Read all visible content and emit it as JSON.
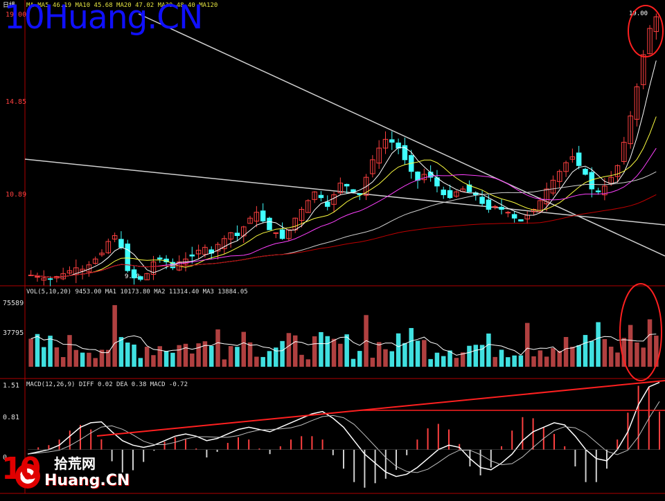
{
  "watermark": {
    "text": "10Huang.CN"
  },
  "logo": {
    "cn": "拾荒网",
    "en": "Huang.CN",
    "ten": "10"
  },
  "header": {
    "period": "日线",
    "ma_line": "MA MA5 46.19 MA10 45.68 MA20 47.02 MA30 48.40 MA120",
    "vol_line": "VOL(5,10,20) 9453.00 MA1 10173.80 MA2 11314.40 MA3 13884.05",
    "macd_line": "MACD(12,26,9) DIFF 0.02 DEA 0.38 MACD -0.72"
  },
  "price_axis": {
    "top": "19.00",
    "mid": "14.85",
    "low": "10.89"
  },
  "price_annotations": {
    "low_label": "9.80",
    "high_label": "19.00"
  },
  "vol_axis": {
    "top": "75589",
    "mid": "37795"
  },
  "macd_axis": {
    "top": "1.51",
    "mid": "0.81",
    "zero": "0"
  },
  "colors": {
    "up": "#ff4040",
    "down": "#40ffff",
    "background": "#000000",
    "ma_short": "#ffffff",
    "ma_mid": "#ffff40",
    "ma_long": "#ff40ff",
    "ma_longest": "#c00000",
    "trend": "#d0d0d0",
    "trend_red": "#ff2020",
    "circle": "#ff2020"
  },
  "chart_data": {
    "type": "candlestick",
    "indicators": [
      "MA",
      "VOL",
      "MACD"
    ],
    "price_range": [
      9.8,
      19.0
    ],
    "candles_close": [
      10.05,
      10.0,
      9.95,
      9.9,
      10.0,
      10.1,
      10.2,
      10.3,
      10.25,
      10.4,
      10.6,
      10.8,
      11.2,
      11.4,
      11.0,
      10.2,
      9.95,
      9.9,
      10.1,
      10.5,
      10.6,
      10.5,
      10.3,
      10.5,
      10.6,
      10.7,
      10.9,
      11.0,
      10.8,
      11.1,
      11.3,
      11.5,
      11.4,
      11.7,
      12.0,
      12.2,
      11.9,
      11.6,
      11.5,
      11.3,
      11.6,
      12.0,
      12.3,
      12.6,
      12.9,
      12.7,
      12.4,
      12.8,
      13.2,
      13.1,
      12.9,
      12.8,
      13.4,
      14.0,
      14.4,
      14.7,
      14.6,
      14.4,
      14.0,
      13.6,
      13.3,
      13.5,
      13.4,
      13.1,
      12.8,
      12.7,
      12.9,
      13.0,
      12.9,
      12.8,
      12.5,
      12.3,
      12.4,
      12.3,
      12.2,
      12.0,
      11.9,
      12.1,
      12.3,
      12.6,
      13.0,
      13.3,
      13.6,
      13.9,
      14.1,
      13.8,
      13.5,
      13.0,
      12.9,
      13.1,
      13.4,
      13.8,
      14.6,
      15.5,
      16.5,
      17.6,
      18.5,
      18.9
    ],
    "volume_range": [
      0,
      75589
    ],
    "macd_range": [
      -0.9,
      1.51
    ],
    "diff_points": [
      -0.1,
      -0.05,
      0.0,
      0.1,
      0.3,
      0.5,
      0.6,
      0.62,
      0.4,
      0.2,
      0.1,
      0.05,
      0.1,
      0.2,
      0.3,
      0.35,
      0.3,
      0.2,
      0.25,
      0.35,
      0.45,
      0.5,
      0.45,
      0.4,
      0.5,
      0.6,
      0.7,
      0.8,
      0.85,
      0.7,
      0.5,
      0.2,
      -0.1,
      -0.3,
      -0.5,
      -0.6,
      -0.55,
      -0.4,
      -0.2,
      0.0,
      0.1,
      0.05,
      -0.2,
      -0.4,
      -0.45,
      -0.3,
      -0.1,
      0.2,
      0.4,
      0.5,
      0.6,
      0.55,
      0.3,
      0.0,
      -0.2,
      -0.25,
      0.0,
      0.4,
      1.0,
      1.4,
      1.5
    ]
  }
}
